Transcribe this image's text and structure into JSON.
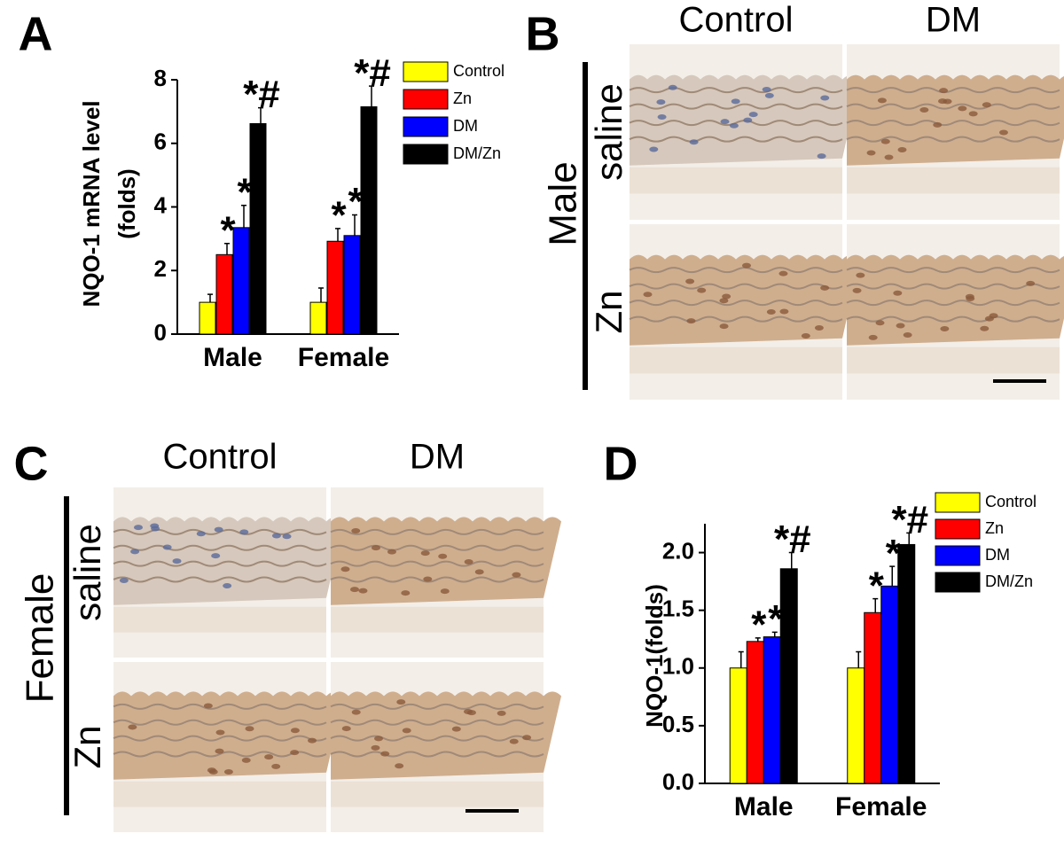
{
  "panel_labels": [
    "A",
    "B",
    "C",
    "D"
  ],
  "chart_data": [
    {
      "type": "bar",
      "ylabel": [
        "NQO-1 mRNA level",
        "(folds)"
      ],
      "categories": [
        "Male",
        "Female"
      ],
      "ylim": [
        0,
        8
      ],
      "yticks": [
        0,
        2,
        4,
        6,
        8
      ],
      "legend": "upper right",
      "series": [
        {
          "name": "Control",
          "color": "#ffff00",
          "values": [
            1.0,
            1.0
          ],
          "errors": [
            0.25,
            0.45
          ]
        },
        {
          "name": "Zn",
          "color": "#ff0000",
          "values": [
            2.5,
            2.92
          ],
          "errors": [
            0.35,
            0.4
          ],
          "significance": [
            "*",
            "*"
          ]
        },
        {
          "name": "DM",
          "color": "#0000ff",
          "values": [
            3.35,
            3.1
          ],
          "errors": [
            0.7,
            0.65
          ],
          "significance": [
            "*",
            "*"
          ]
        },
        {
          "name": "DM/Zn",
          "color": "#000000",
          "values": [
            6.62,
            7.15
          ],
          "errors": [
            0.5,
            0.65
          ],
          "significance": [
            "*#",
            "*#"
          ]
        }
      ]
    },
    {
      "type": "bar",
      "ylabel": [
        "NQO-1(folds)"
      ],
      "categories": [
        "Male",
        "Female"
      ],
      "ylim": [
        0,
        2.25
      ],
      "yticks": [
        {
          "value": 0,
          "label": "0.0"
        },
        {
          "value": 0.5,
          "label": "0.5"
        },
        {
          "value": 1,
          "label": "1.0"
        },
        {
          "value": 1.5,
          "label": "1.5"
        },
        {
          "value": 2,
          "label": "2.0"
        }
      ],
      "legend": "upper right",
      "series": [
        {
          "name": "Control",
          "color": "#ffff00",
          "values": [
            1.0,
            1.0
          ],
          "errors": [
            0.14,
            0.14
          ]
        },
        {
          "name": "Zn",
          "color": "#ff0000",
          "values": [
            1.23,
            1.48
          ],
          "errors": [
            0.03,
            0.12
          ],
          "significance": [
            "*",
            "*"
          ]
        },
        {
          "name": "DM",
          "color": "#0000ff",
          "values": [
            1.27,
            1.71
          ],
          "errors": [
            0.04,
            0.17
          ],
          "significance": [
            "*",
            "*"
          ]
        },
        {
          "name": "DM/Zn",
          "color": "#000000",
          "values": [
            1.86,
            2.07
          ],
          "errors": [
            0.14,
            0.1
          ],
          "significance": [
            "*#",
            "*#"
          ]
        }
      ]
    }
  ],
  "micrographs": [
    {
      "group": "Male",
      "columns": [
        "Control",
        "DM"
      ],
      "rows": [
        "saline",
        "Zn"
      ]
    },
    {
      "group": "Female",
      "columns": [
        "Control",
        "DM"
      ],
      "rows": [
        "saline",
        "Zn"
      ]
    }
  ]
}
